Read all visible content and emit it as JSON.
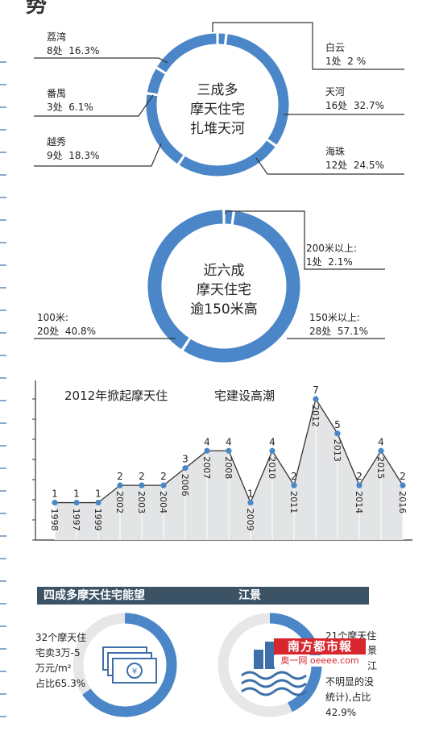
{
  "header": {
    "title_fragment": "势 "
  },
  "donut1": {
    "center": [
      "三成多",
      "摩天住宅",
      "扎堆天河"
    ],
    "labels": [
      {
        "name": "荔湾",
        "value": "8处  16.3%"
      },
      {
        "name": "番禺",
        "value": "3处  6.1%"
      },
      {
        "name": "越秀",
        "value": "9处  18.3%"
      },
      {
        "name": "白云",
        "value": "1处  2 %"
      },
      {
        "name": "天河",
        "value": "16处  32.7%"
      },
      {
        "name": "海珠",
        "value": "12处  24.5%"
      }
    ]
  },
  "donut2": {
    "center": [
      "近六成",
      "摩天住宅",
      "逾150米高"
    ],
    "labels": [
      {
        "name": "200米以上:",
        "value": "1处  2.1%"
      },
      {
        "name": "100米:",
        "value": "20处  40.8%"
      },
      {
        "name": "150米以上:",
        "value": "28处  57.1%"
      }
    ]
  },
  "chart_data": [
    {
      "type": "pie",
      "variant": "donut",
      "title": "三成多摩天住宅扎堆天河",
      "categories": [
        "白云",
        "天河",
        "海珠",
        "越秀",
        "番禺",
        "荔湾"
      ],
      "counts": [
        1,
        16,
        12,
        9,
        3,
        8
      ],
      "percents": [
        2,
        32.7,
        24.5,
        18.3,
        6.1,
        16.3
      ]
    },
    {
      "type": "pie",
      "variant": "donut",
      "title": "近六成摩天住宅逾150米高",
      "categories": [
        "200米以上:",
        "150米以上:",
        "100米:"
      ],
      "counts": [
        1,
        28,
        20
      ],
      "percents": [
        2.1,
        57.1,
        40.8
      ]
    },
    {
      "type": "area",
      "title": "2012年掀起摩天住宅建设高潮",
      "categories": [
        "1998",
        "1997",
        "1999",
        "2002",
        "2003",
        "2004",
        "2006",
        "2007",
        "2008",
        "2009",
        "2010",
        "2011",
        "2012",
        "2013",
        "2014",
        "2015",
        "2016"
      ],
      "values": [
        1,
        1,
        1,
        2,
        2,
        2,
        3,
        4,
        4,
        1,
        4,
        2,
        7,
        5,
        2,
        4,
        2
      ],
      "ylim": [
        0,
        7
      ]
    },
    {
      "type": "pie",
      "variant": "donut",
      "title": "",
      "categories": [
        "32个摩天住宅卖3万-5万元/m²"
      ],
      "percents": [
        65.3
      ]
    },
    {
      "type": "pie",
      "variant": "donut",
      "title": "",
      "categories": [
        "21个摩天住宅"
      ],
      "percents": [
        42.9
      ]
    }
  ],
  "line_chart": {
    "title_a": "2012年掀起摩天住",
    "title_b": "宅建设高潮"
  },
  "banner": {
    "left": "四成多摩天住宅能望",
    "right": "江景"
  },
  "money_text": [
    "32个摩天住",
    "宅卖3万-5",
    "万元/m²",
    "占比65.3%"
  ],
  "river_text": [
    "21个摩天住",
    "景",
    "江",
    "不明显的没",
    "统计),占比",
    "42.9%"
  ],
  "watermark": {
    "line1": "南方都市報",
    "line2": "奥一网 oeeee.com"
  },
  "colors": {
    "ring": "#4a86c8",
    "ring_light": "#e7e7e7",
    "banner": "#3c5366",
    "point": "#4a86c8",
    "area": "#e3e4e6"
  }
}
